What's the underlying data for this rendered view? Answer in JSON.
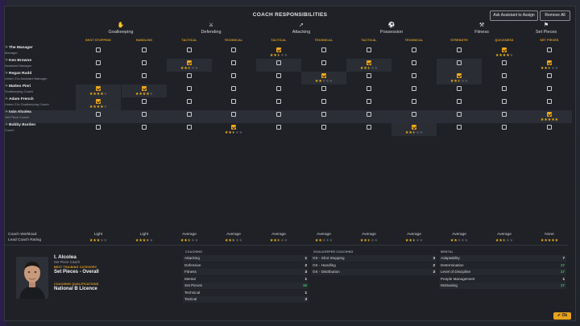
{
  "header": {
    "title": "COACH RESPONSIBILITIES",
    "assign_label": "Ask Assistant to Assign",
    "remove_label": "Remove All"
  },
  "colors": {
    "accent": "#f0a818",
    "green": "#3ec46d",
    "white": "#f2f2f2"
  },
  "categories": [
    {
      "label": "Goalkeeping",
      "icon": "goalkeeper-icon",
      "glyph": "✋"
    },
    {
      "label": "Defending",
      "icon": "defending-icon",
      "glyph": "⚔"
    },
    {
      "label": "Attacking",
      "icon": "attacking-icon",
      "glyph": "➚"
    },
    {
      "label": "Possession",
      "icon": "possession-icon",
      "glyph": "⚽"
    },
    {
      "label": "Fitness",
      "icon": "fitness-icon",
      "glyph": "⚒"
    },
    {
      "label": "Set Pieces",
      "icon": "set-pieces-icon",
      "glyph": "⚑"
    }
  ],
  "subcolumns": [
    "SHOT STOPPING",
    "HANDLING",
    "TACTICAL",
    "TECHNICAL",
    "TACTICAL",
    "TECHNICAL",
    "TACTICAL",
    "TECHNICAL",
    "STRENGTH",
    "QUICKNESS",
    "SET PIECES"
  ],
  "staff": [
    {
      "name": "The Manager",
      "role": "Manager",
      "checks": [
        0,
        0,
        0,
        0,
        1,
        0,
        0,
        0,
        0,
        1,
        0
      ],
      "stars": [
        null,
        null,
        null,
        null,
        2.5,
        null,
        null,
        null,
        null,
        4,
        null
      ]
    },
    {
      "name": "Ken Browne",
      "role": "Assistant Manager",
      "checks": [
        0,
        0,
        1,
        0,
        0,
        0,
        1,
        0,
        0,
        0,
        1
      ],
      "stars": [
        null,
        null,
        2.5,
        null,
        null,
        null,
        2.5,
        null,
        null,
        null,
        2.5
      ]
    },
    {
      "name": "Regan Rudd",
      "role": "Under 21s Assistant Manager",
      "checks": [
        0,
        0,
        0,
        0,
        0,
        1,
        0,
        0,
        1,
        0,
        0
      ],
      "stars": [
        null,
        null,
        null,
        null,
        null,
        2,
        null,
        null,
        2.5,
        null,
        null
      ]
    },
    {
      "name": "Matteo Pieri",
      "role": "Goalkeeping Coach",
      "checks": [
        1,
        1,
        0,
        0,
        0,
        0,
        0,
        0,
        0,
        0,
        0
      ],
      "stars": [
        4,
        4,
        null,
        null,
        null,
        null,
        null,
        null,
        null,
        null,
        null
      ]
    },
    {
      "name": "Adam French",
      "role": "Under 21s Goalkeeping Coach",
      "checks": [
        1,
        0,
        0,
        0,
        0,
        0,
        0,
        0,
        0,
        0,
        0
      ],
      "stars": [
        4,
        null,
        null,
        null,
        null,
        null,
        null,
        null,
        null,
        null,
        null
      ]
    },
    {
      "name": "Iván Alcolea",
      "role": "Set Piece Coach",
      "checks": [
        0,
        0,
        0,
        0,
        0,
        0,
        0,
        0,
        0,
        0,
        1
      ],
      "stars": [
        null,
        null,
        null,
        null,
        null,
        null,
        null,
        null,
        null,
        null,
        5
      ]
    },
    {
      "name": "Bobby Burden",
      "role": "Coach",
      "checks": [
        0,
        0,
        0,
        1,
        0,
        0,
        0,
        1,
        0,
        0,
        0
      ],
      "stars": [
        null,
        null,
        null,
        2.5,
        null,
        null,
        null,
        2.5,
        null,
        null,
        null
      ]
    }
  ],
  "footer": {
    "workload_label": "Coach Workload",
    "rating_label": "Lead Coach Rating",
    "workloads": [
      "Light",
      "Light",
      "Average",
      "Average",
      "Average",
      "Average",
      "Average",
      "Average",
      "Average",
      "Average",
      "None"
    ],
    "ratings": [
      3,
      3.5,
      2.5,
      2.5,
      2.5,
      2,
      2.5,
      2.5,
      2,
      2.5,
      5
    ]
  },
  "profile": {
    "name": "I. Alcolea",
    "role": "Set Piece Coach",
    "best_label": "BEST TRAINING CATEGORY",
    "best_value": "Set Pieces - Overall",
    "qual_label": "COACHING QUALIFICATIONS",
    "qual_value": "National B Licence"
  },
  "coaching": {
    "title": "COACHING",
    "rows": [
      {
        "name": "Attacking",
        "value": "1",
        "color": "#f2f2f2"
      },
      {
        "name": "Defensive",
        "value": "2",
        "color": "#f2f2f2"
      },
      {
        "name": "Fitness",
        "value": "3",
        "color": "#f2f2f2"
      },
      {
        "name": "Mental",
        "value": "1",
        "color": "#f2f2f2"
      },
      {
        "name": "Set Pieces",
        "value": "18",
        "color": "#3ec46d"
      },
      {
        "name": "Technical",
        "value": "1",
        "color": "#f2f2f2"
      },
      {
        "name": "Tactical",
        "value": "3",
        "color": "#f2f2f2"
      }
    ]
  },
  "gk_coaching": {
    "title": "GOALKEEPER COACHING",
    "rows": [
      {
        "name": "GK - Shot Stopping",
        "value": "3",
        "color": "#f2f2f2"
      },
      {
        "name": "GK - Handling",
        "value": "2",
        "color": "#f2f2f2"
      },
      {
        "name": "GK - Distribution",
        "value": "3",
        "color": "#f2f2f2"
      }
    ]
  },
  "mental": {
    "title": "MENTAL",
    "rows": [
      {
        "name": "Adaptability",
        "value": "7",
        "color": "#f2f2f2"
      },
      {
        "name": "Determination",
        "value": "17",
        "color": "#3ec46d"
      },
      {
        "name": "Level of Discipline",
        "value": "17",
        "color": "#3ec46d"
      },
      {
        "name": "People Management",
        "value": "1",
        "color": "#f2f2f2"
      },
      {
        "name": "Motivating",
        "value": "17",
        "color": "#3ec46d"
      }
    ]
  },
  "ok_label": "Ok"
}
